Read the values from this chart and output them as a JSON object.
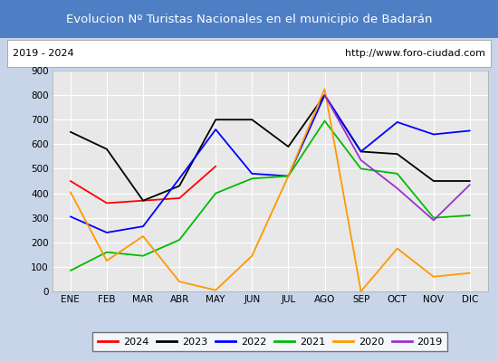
{
  "title": "Evolucion Nº Turistas Nacionales en el municipio de Badarán",
  "subtitle_left": "2019 - 2024",
  "subtitle_right": "http://www.foro-ciudad.com",
  "title_bg_color": "#4e7fc4",
  "title_text_color": "#ffffff",
  "subtitle_bg_color": "#ffffff",
  "plot_bg_color": "#e8e8e8",
  "months": [
    "ENE",
    "FEB",
    "MAR",
    "ABR",
    "MAY",
    "JUN",
    "JUL",
    "AGO",
    "SEP",
    "OCT",
    "NOV",
    "DIC"
  ],
  "series": {
    "2024": {
      "color": "#ff0000",
      "data": [
        450,
        360,
        370,
        380,
        510,
        null,
        null,
        null,
        null,
        null,
        null,
        null
      ]
    },
    "2023": {
      "color": "#000000",
      "data": [
        650,
        580,
        370,
        430,
        700,
        700,
        590,
        800,
        570,
        560,
        450,
        450
      ]
    },
    "2022": {
      "color": "#0000ff",
      "data": [
        305,
        240,
        265,
        460,
        660,
        480,
        470,
        800,
        570,
        690,
        640,
        655
      ]
    },
    "2021": {
      "color": "#00bb00",
      "data": [
        85,
        160,
        145,
        210,
        400,
        460,
        470,
        695,
        500,
        480,
        300,
        310
      ]
    },
    "2020": {
      "color": "#ff9900",
      "data": [
        405,
        125,
        225,
        40,
        5,
        145,
        470,
        825,
        0,
        175,
        60,
        75
      ]
    },
    "2019": {
      "color": "#9933cc",
      "data": [
        null,
        null,
        null,
        null,
        null,
        null,
        null,
        800,
        535,
        420,
        290,
        435
      ]
    }
  },
  "ylim": [
    0,
    900
  ],
  "yticks": [
    0,
    100,
    200,
    300,
    400,
    500,
    600,
    700,
    800,
    900
  ],
  "outer_bg_color": "#c8d4e8",
  "legend_order": [
    "2024",
    "2023",
    "2022",
    "2021",
    "2020",
    "2019"
  ],
  "grid_color": "#ffffff",
  "border_color": "#555555"
}
